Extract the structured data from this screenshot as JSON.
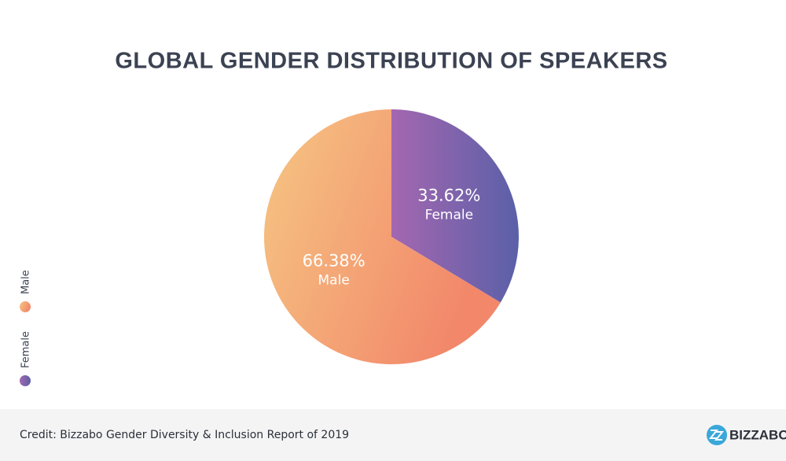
{
  "chart_data": {
    "type": "pie",
    "title": "GLOBAL GENDER DISTRIBUTION OF SPEAKERS",
    "categories": [
      "Female",
      "Male"
    ],
    "values": [
      33.62,
      66.38
    ],
    "value_labels": [
      "33.62%",
      "66.38%"
    ],
    "colors": [
      [
        "#a467b0",
        "#5a60a8"
      ],
      [
        "#f6c683",
        "#f2876a"
      ]
    ]
  },
  "footer": {
    "credit": "Credit: Bizzabo Gender Diversity & Inclusion Report of 2019",
    "brand": "BIZZABO"
  }
}
